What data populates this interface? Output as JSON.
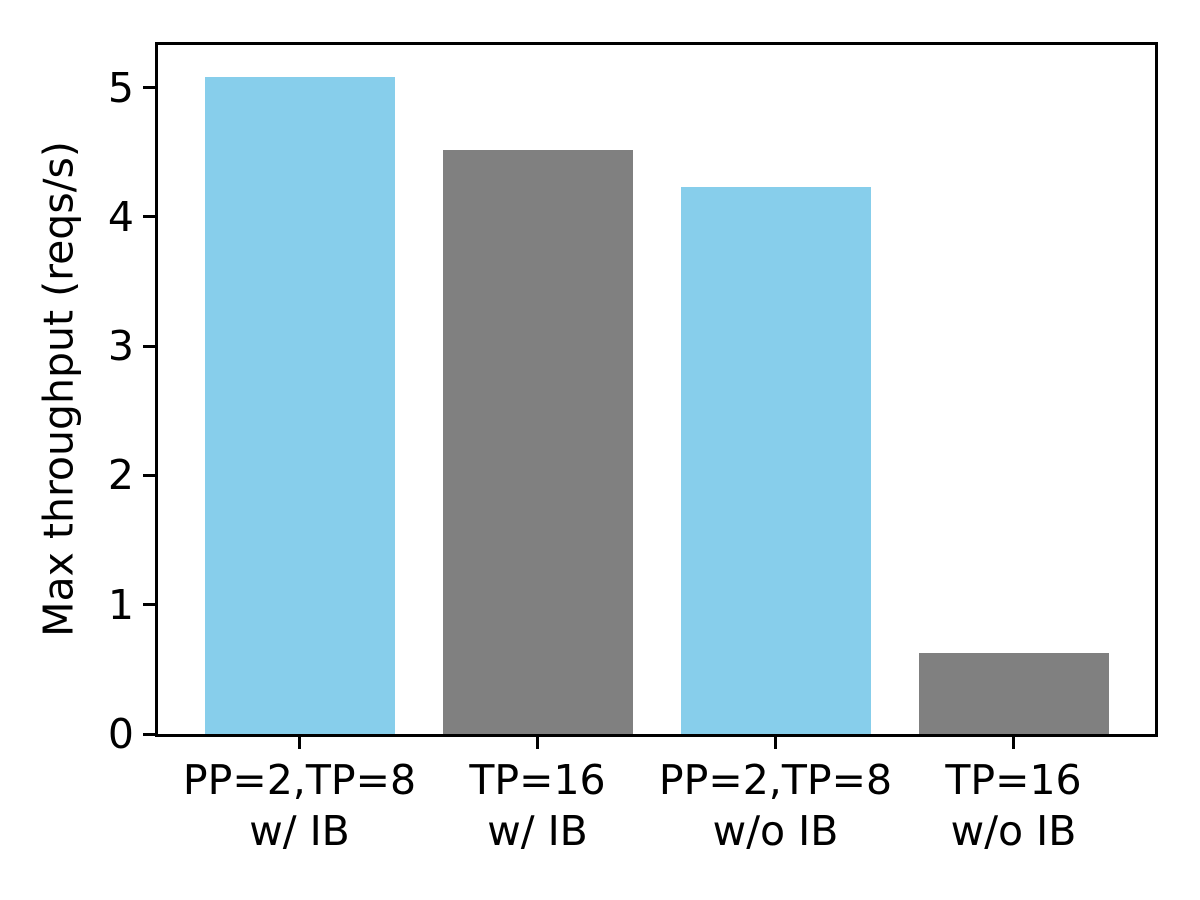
{
  "chart_data": {
    "type": "bar",
    "title": "",
    "xlabel": "",
    "ylabel": "Max throughput (reqs/s)",
    "categories": [
      "PP=2,TP=8\nw/ IB",
      "TP=16\nw/ IB",
      "PP=2,TP=8\nw/o IB",
      "TP=16\nw/o IB"
    ],
    "values": [
      5.08,
      4.52,
      4.23,
      0.63
    ],
    "bar_colors": [
      "#87CEEB",
      "#808080",
      "#87CEEB",
      "#808080"
    ],
    "yticks": [
      0,
      1,
      2,
      3,
      4,
      5
    ],
    "ylim": [
      0,
      5.33
    ],
    "grid": false,
    "legend_position": "none",
    "axis_color": "#000000",
    "background_color": "#FFFFFF"
  }
}
